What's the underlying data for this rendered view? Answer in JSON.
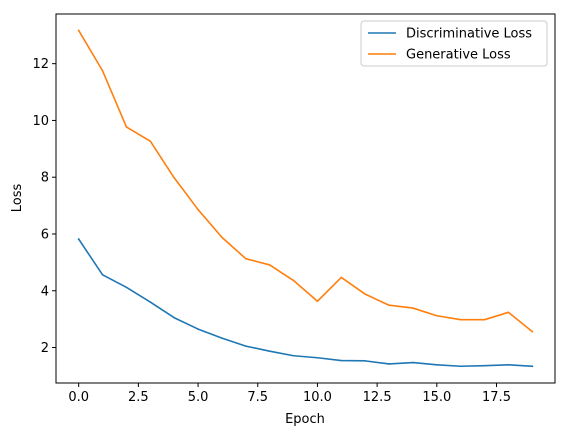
{
  "chart_data": {
    "type": "line",
    "title": "",
    "xlabel": "Epoch",
    "ylabel": "Loss",
    "xlim": [
      -0.95,
      19.95
    ],
    "ylim": [
      0.75,
      13.75
    ],
    "x_ticks": [
      0,
      2.5,
      5,
      7.5,
      10,
      12.5,
      15,
      17.5
    ],
    "x_tick_labels": [
      "0.0",
      "2.5",
      "5.0",
      "7.5",
      "10.0",
      "12.5",
      "15.0",
      "17.5"
    ],
    "y_ticks": [
      2,
      4,
      6,
      8,
      10,
      12
    ],
    "y_tick_labels": [
      "2",
      "4",
      "6",
      "8",
      "10",
      "12"
    ],
    "grid": false,
    "legend_position": "top-right",
    "x": [
      0,
      1,
      2,
      3,
      4,
      5,
      6,
      7,
      8,
      9,
      10,
      11,
      12,
      13,
      14,
      15,
      16,
      17,
      18,
      19
    ],
    "series": [
      {
        "name": "Discriminative Loss",
        "color": "#1f77b4",
        "values": [
          5.82,
          4.56,
          4.12,
          3.6,
          3.05,
          2.65,
          2.33,
          2.05,
          1.87,
          1.71,
          1.64,
          1.54,
          1.53,
          1.42,
          1.47,
          1.39,
          1.34,
          1.36,
          1.39,
          1.34
        ]
      },
      {
        "name": "Generative Loss",
        "color": "#ff7f0e",
        "values": [
          13.17,
          11.75,
          9.77,
          9.27,
          7.98,
          6.86,
          5.88,
          5.13,
          4.91,
          4.36,
          3.63,
          4.47,
          3.88,
          3.49,
          3.39,
          3.12,
          2.98,
          2.98,
          3.24,
          2.56
        ]
      }
    ]
  }
}
